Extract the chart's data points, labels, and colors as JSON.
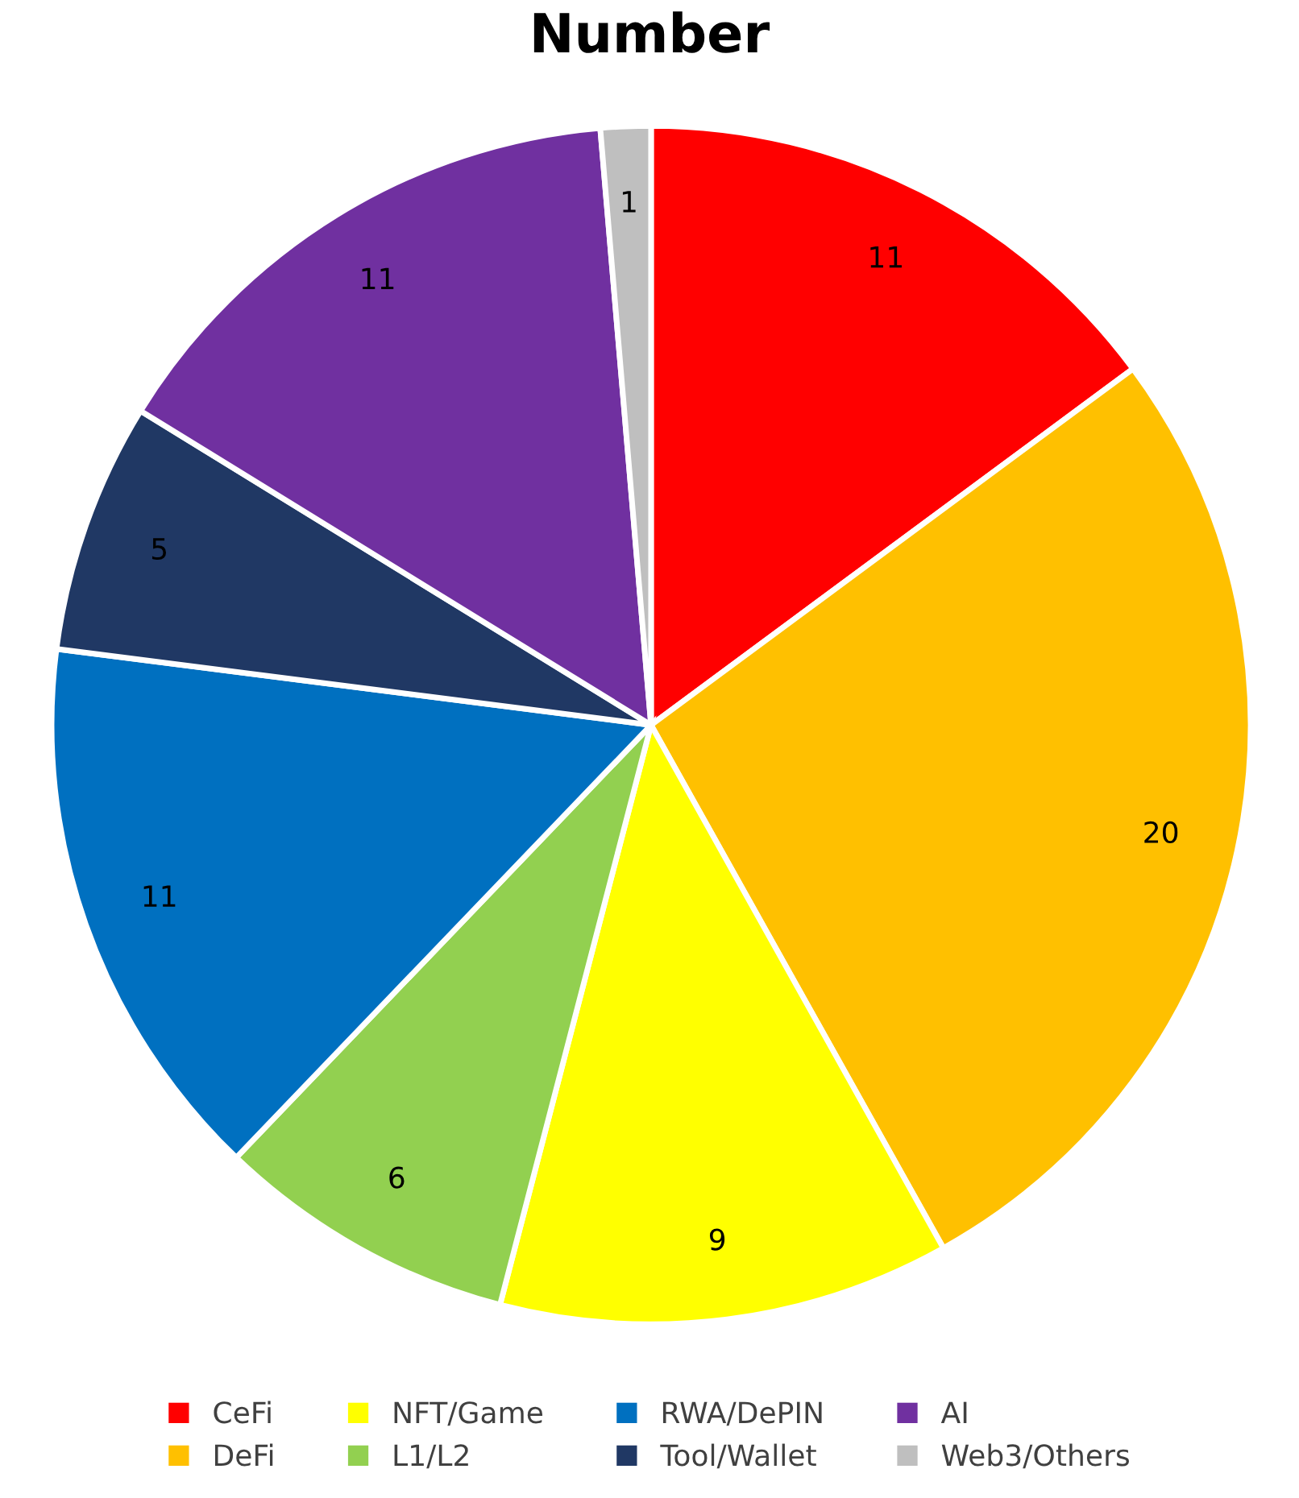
{
  "chart_data": {
    "type": "pie",
    "title": "Number",
    "categories": [
      "CeFi",
      "DeFi",
      "NFT/Game",
      "L1/L2",
      "RWA/DePIN",
      "Tool/Wallet",
      "AI",
      "Web3/Others"
    ],
    "values": [
      11,
      20,
      9,
      6,
      11,
      5,
      11,
      1
    ],
    "colors": [
      "#ff0000",
      "#ffc000",
      "#ffff00",
      "#92d050",
      "#0070c0",
      "#203864",
      "#7030a0",
      "#bfbfbf"
    ],
    "data_labels": true,
    "legend": "bottom"
  }
}
